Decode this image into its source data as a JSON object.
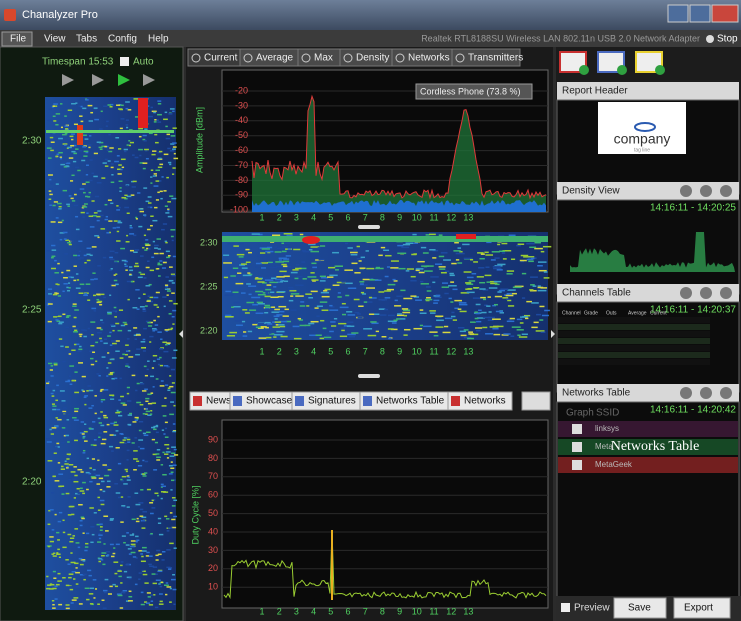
{
  "window": {
    "title": "Chanalyzer Pro"
  },
  "menu": [
    "File",
    "View",
    "Tabs",
    "Config",
    "Help"
  ],
  "adapter": "Realtek RTL8188SU Wireless LAN 802.11n USB 2.0 Network Adapter",
  "stop": "Stop",
  "left_panel": {
    "timespan": "Timespan 15:53",
    "auto": "Auto",
    "time_labels": [
      "2:30",
      "2:25",
      "2:20"
    ]
  },
  "view_tabs": [
    "Current",
    "Average",
    "Max",
    "Density",
    "Networks",
    "Transmitters"
  ],
  "spectrum": {
    "y_axis_label": "Amplitude [dBm]",
    "yticks": [
      "-20",
      "-30",
      "-40",
      "-50",
      "-60",
      "-70",
      "-80",
      "-90",
      "-100"
    ],
    "channels": [
      "1",
      "2",
      "3",
      "4",
      "5",
      "6",
      "7",
      "8",
      "9",
      "10",
      "11",
      "12",
      "13"
    ],
    "tooltip": "Cordless Phone (73.8 %)"
  },
  "waterfall": {
    "time_labels": [
      "2:30",
      "2:25",
      "2:20"
    ],
    "channels": [
      "1",
      "2",
      "3",
      "4",
      "5",
      "6",
      "7",
      "8",
      "9",
      "10",
      "11",
      "12",
      "13"
    ]
  },
  "bottom_tabs": [
    "News",
    "Showcase",
    "Signatures",
    "Networks Table",
    "Networks"
  ],
  "duty_cycle": {
    "y_axis_label": "Duty Cycle [%]",
    "yticks": [
      "90",
      "80",
      "70",
      "60",
      "50",
      "40",
      "30",
      "20",
      "10"
    ],
    "channels": [
      "1",
      "2",
      "3",
      "4",
      "5",
      "6",
      "7",
      "8",
      "9",
      "10",
      "11",
      "12",
      "13"
    ]
  },
  "report_header": {
    "title": "Report Header",
    "logo": "company",
    "tagline": "tag line"
  },
  "density_view": {
    "title": "Density View",
    "time_range": "14:16:11 - 14:20:25"
  },
  "channels_table": {
    "title": "Channels Table",
    "time_range": "14:16:11 - 14:20:37",
    "columns": [
      "Channel",
      "Grade",
      "Outs",
      "Average",
      "Current"
    ]
  },
  "networks_table": {
    "title": "Networks Table",
    "time_range": "14:16:11 - 14:20:42",
    "columns": [
      "Graph",
      "SSID"
    ],
    "rows": [
      "linksys",
      "Meta",
      "MetaGeek"
    ],
    "overlay": "Networks Table"
  },
  "footer": {
    "preview": "Preview",
    "save": "Save",
    "export": "Export"
  }
}
